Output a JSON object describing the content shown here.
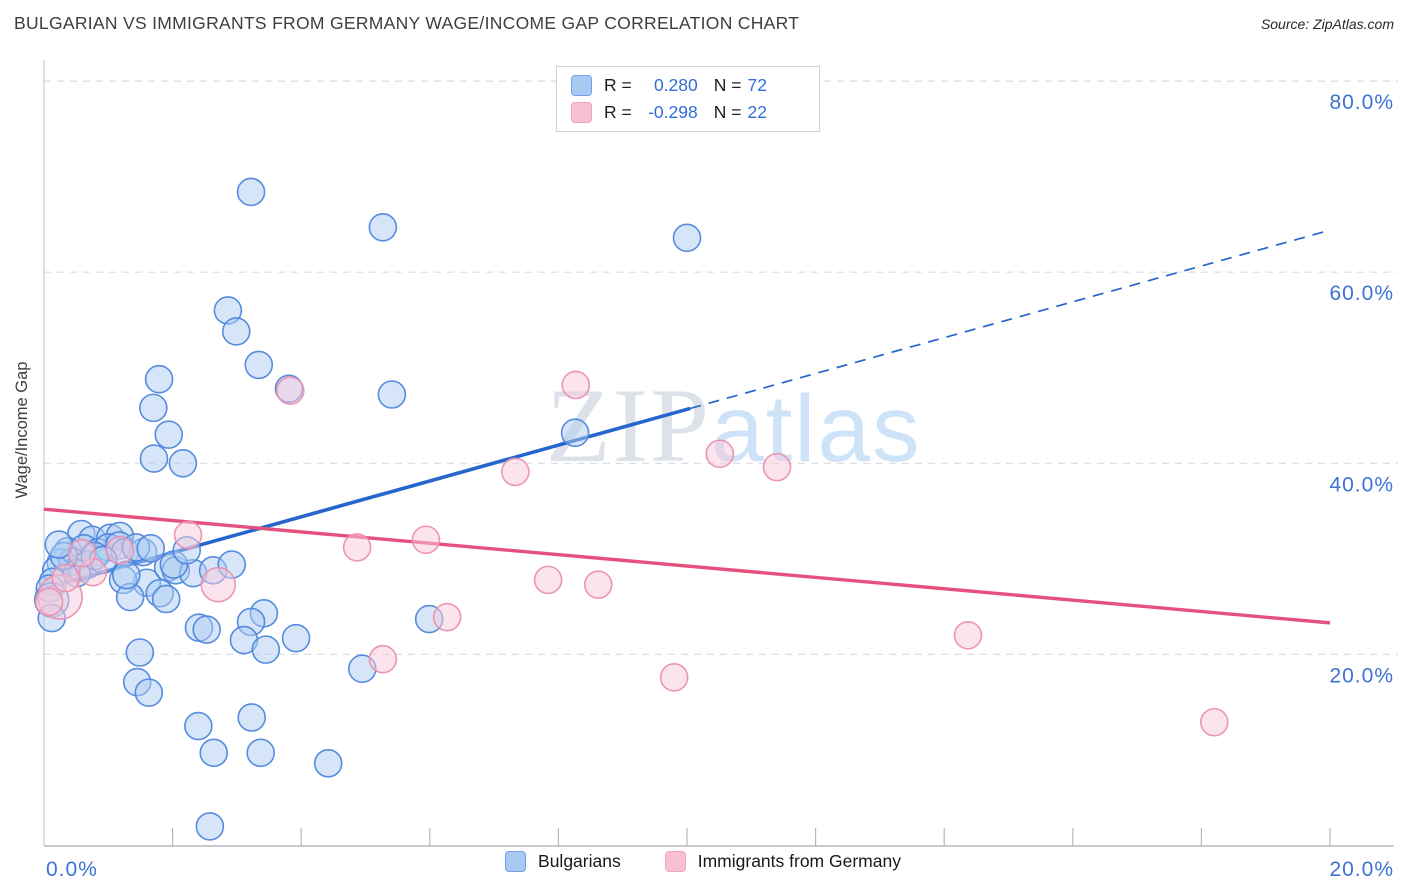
{
  "header": {
    "title": "BULGARIAN VS IMMIGRANTS FROM GERMANY WAGE/INCOME GAP CORRELATION CHART",
    "source": "Source: ZipAtlas.com"
  },
  "stats_legend": {
    "rows": [
      {
        "r_label": "R =",
        "r_value": "0.280",
        "n_label": "N =",
        "n_value": "72"
      },
      {
        "r_label": "R =",
        "r_value": "-0.298",
        "n_label": "N =",
        "n_value": "22"
      }
    ]
  },
  "bottom_legend": {
    "items": [
      {
        "label": "Bulgarians"
      },
      {
        "label": "Immigrants from Germany"
      }
    ]
  },
  "watermark": {
    "part1": "ZIP",
    "part2": "atlas"
  },
  "chart_data": {
    "type": "scatter",
    "title": "BULGARIAN VS IMMIGRANTS FROM GERMANY WAGE/INCOME GAP CORRELATION CHART",
    "xlabel": "",
    "ylabel": "Wage/Income Gap",
    "xlim": [
      0,
      20
    ],
    "ylim": [
      0,
      82
    ],
    "grid": "horizontal-dashed",
    "legend_position": "top-center and bottom",
    "x_edge_labels": [
      "0.0%",
      "20.0%"
    ],
    "x_tick_values": [
      2,
      4,
      6,
      8,
      10,
      12,
      14,
      16,
      18,
      20
    ],
    "y_ticks": [
      {
        "value": 80,
        "label": "80.0%"
      },
      {
        "value": 60,
        "label": "60.0%"
      },
      {
        "value": 40,
        "label": "40.0%"
      },
      {
        "value": 20,
        "label": "20.0%"
      }
    ],
    "point_radius": 13.5,
    "series": [
      {
        "name": "Bulgarians",
        "R": 0.28,
        "N": 72,
        "points": [
          [
            3.22,
            68.4
          ],
          [
            5.27,
            64.7
          ],
          [
            10.0,
            63.6
          ],
          [
            2.86,
            56.0
          ],
          [
            2.99,
            53.8
          ],
          [
            3.34,
            50.3
          ],
          [
            3.81,
            47.8
          ],
          [
            5.41,
            47.2
          ],
          [
            1.79,
            48.8
          ],
          [
            1.7,
            45.8
          ],
          [
            1.94,
            43.0
          ],
          [
            1.71,
            40.5
          ],
          [
            2.16,
            40.0
          ],
          [
            8.26,
            43.2
          ],
          [
            0.58,
            32.6
          ],
          [
            0.75,
            32.0
          ],
          [
            1.03,
            32.2
          ],
          [
            1.18,
            32.4
          ],
          [
            0.37,
            30.8
          ],
          [
            0.62,
            31.1
          ],
          [
            0.84,
            30.7
          ],
          [
            1.0,
            31.2
          ],
          [
            1.17,
            31.4
          ],
          [
            1.26,
            30.7
          ],
          [
            0.26,
            29.6
          ],
          [
            0.44,
            29.7
          ],
          [
            0.56,
            29.1
          ],
          [
            0.19,
            28.8
          ],
          [
            0.68,
            29.4
          ],
          [
            0.14,
            27.6
          ],
          [
            0.09,
            26.9
          ],
          [
            0.12,
            25.7,
            17
          ],
          [
            0.51,
            28.5
          ],
          [
            1.54,
            30.7
          ],
          [
            1.6,
            27.5
          ],
          [
            1.23,
            27.8
          ],
          [
            1.93,
            29.1
          ],
          [
            2.05,
            28.8
          ],
          [
            2.32,
            28.5
          ],
          [
            2.63,
            28.8
          ],
          [
            0.12,
            23.8
          ],
          [
            1.34,
            26.0
          ],
          [
            1.8,
            26.4
          ],
          [
            1.28,
            28.3
          ],
          [
            1.9,
            25.8
          ],
          [
            2.92,
            29.4
          ],
          [
            3.42,
            24.3
          ],
          [
            3.22,
            23.4
          ],
          [
            2.41,
            22.8
          ],
          [
            2.53,
            22.6
          ],
          [
            3.11,
            21.5
          ],
          [
            3.45,
            20.5
          ],
          [
            3.92,
            21.7
          ],
          [
            1.49,
            20.2
          ],
          [
            5.99,
            23.7
          ],
          [
            1.45,
            17.1
          ],
          [
            1.63,
            16.0
          ],
          [
            2.4,
            12.5
          ],
          [
            3.23,
            13.4
          ],
          [
            2.64,
            9.7
          ],
          [
            3.37,
            9.7
          ],
          [
            4.42,
            8.6
          ],
          [
            2.58,
            2.0
          ],
          [
            4.95,
            18.5
          ],
          [
            0.31,
            30.3
          ],
          [
            0.79,
            30.3
          ],
          [
            0.92,
            29.9
          ],
          [
            1.43,
            31.2
          ],
          [
            1.66,
            31.1
          ],
          [
            2.02,
            29.4
          ],
          [
            2.22,
            30.9
          ],
          [
            0.23,
            31.5
          ]
        ]
      },
      {
        "name": "Immigrants from Germany",
        "R": -0.298,
        "N": 22,
        "points": [
          [
            0.25,
            26.0,
            22
          ],
          [
            2.24,
            32.5
          ],
          [
            1.18,
            30.9
          ],
          [
            0.76,
            28.6
          ],
          [
            2.71,
            27.3,
            17
          ],
          [
            3.83,
            47.6
          ],
          [
            4.87,
            31.2
          ],
          [
            5.94,
            32.0
          ],
          [
            6.27,
            23.9
          ],
          [
            5.27,
            19.5
          ],
          [
            7.33,
            39.1
          ],
          [
            7.84,
            27.8
          ],
          [
            8.27,
            48.2
          ],
          [
            8.62,
            27.3
          ],
          [
            9.8,
            17.6
          ],
          [
            10.51,
            41.0
          ],
          [
            11.4,
            39.6
          ],
          [
            14.37,
            22.0
          ],
          [
            18.2,
            12.9
          ],
          [
            0.34,
            28.0
          ],
          [
            0.08,
            25.5
          ],
          [
            0.59,
            30.6
          ]
        ]
      }
    ],
    "trendlines": [
      {
        "series": "Bulgarians",
        "x1": 0,
        "y1": 26.9,
        "x2": 20,
        "y2": 64.4,
        "solid_until_x": 10.05,
        "style": "solid-then-dashed"
      },
      {
        "series": "Immigrants from Germany",
        "x1": 0,
        "y1": 35.2,
        "x2": 20,
        "y2": 23.3,
        "style": "solid"
      }
    ],
    "colors": {
      "blue_fill": "#aecdf2",
      "blue_stroke": "#4e86dd",
      "pink_fill": "#f8c9db",
      "pink_stroke": "#ec8fae",
      "blue_line": "#2566cc",
      "pink_line": "#e5517d",
      "tick_label": "#3d73d3",
      "grid": "#d9dce0",
      "axis": "#b4b9be",
      "ylabel_color": "#3c4043",
      "watermark_zip": "#c3c9d6",
      "watermark_atlas": "#a9cdf4"
    }
  }
}
